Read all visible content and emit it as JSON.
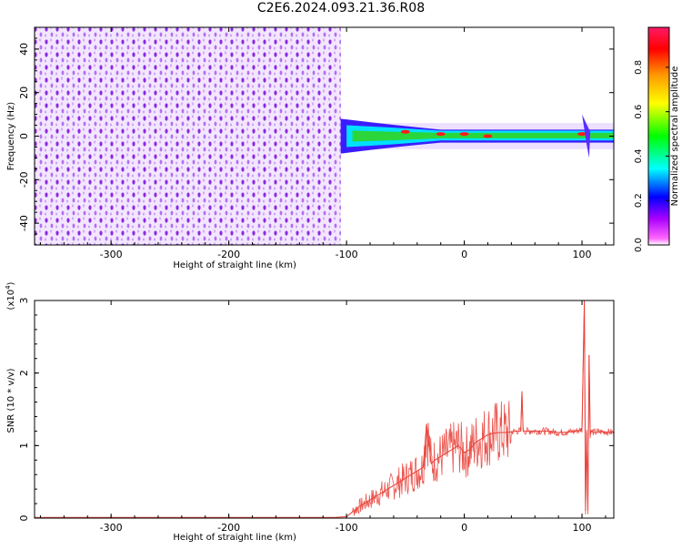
{
  "title": "C2E6.2024.093.21.36.R08",
  "colors": {
    "snr_line": "#e8413a",
    "scatter": "#8a2be2",
    "axis": "#000000"
  },
  "chart_data": [
    {
      "type": "heatmap",
      "xlabel": "Height of straight line (km)",
      "ylabel": "Frequency (Hz)",
      "xlim": [
        -365,
        127
      ],
      "ylim": [
        -50,
        50
      ],
      "xticks": [
        -300,
        -200,
        -100,
        0,
        100
      ],
      "xtick_labels": [
        "-300",
        "-200",
        "-100",
        "0",
        "100"
      ],
      "yticks": [
        -40,
        -20,
        0,
        20,
        40
      ],
      "ytick_labels": [
        "-40",
        "-20",
        "0",
        "20",
        "40"
      ],
      "noise_region_x": [
        -365,
        -105
      ],
      "signal_band_x": [
        -105,
        127
      ],
      "colorbar": {
        "label": "Normalized spectral amplitude",
        "range": [
          0,
          1
        ],
        "ticks": [
          "0.0",
          "0.2",
          "0.4",
          "0.6",
          "0.8"
        ],
        "tick_values": [
          0,
          0.2,
          0.4,
          0.6,
          0.8
        ],
        "colormap": [
          "#ff0000",
          "#ff9900",
          "#ffff00",
          "#00ff00",
          "#00ffff",
          "#0000ff",
          "#ff00ff",
          "#ff3366"
        ]
      },
      "grid": false
    },
    {
      "type": "line",
      "xlabel": "Height of straight line (km)",
      "ylabel": "SNR (10 * v/v)",
      "y_multiplier": "(x10",
      "y_multiplier_exp": "4",
      "xlim": [
        -365,
        127
      ],
      "ylim": [
        0,
        3
      ],
      "xticks": [
        -300,
        -200,
        -100,
        0,
        100
      ],
      "xtick_labels": [
        "-300",
        "-200",
        "-100",
        "0",
        "100"
      ],
      "yticks": [
        0,
        1,
        2,
        3
      ],
      "ytick_labels": [
        "0",
        "1",
        "2",
        "3"
      ],
      "grid": false,
      "series": [
        {
          "x": [
            -365,
            -300,
            -200,
            -110,
            -100,
            -90,
            -85,
            -80,
            -75,
            -70,
            -65,
            -60,
            -55,
            -50,
            -45,
            -40,
            -35,
            -32,
            -28,
            -25,
            -20,
            -15,
            -10,
            -5,
            0,
            5,
            10,
            15,
            20,
            25,
            30,
            35,
            40,
            45,
            48,
            49,
            50,
            55,
            60,
            70,
            80,
            90,
            95,
            100,
            102,
            103,
            104,
            105,
            106,
            107,
            108,
            110,
            115,
            120,
            127
          ],
          "y": [
            0.01,
            0.01,
            0.01,
            0.01,
            0.02,
            0.15,
            0.2,
            0.25,
            0.3,
            0.35,
            0.4,
            0.45,
            0.5,
            0.55,
            0.6,
            0.65,
            0.7,
            1.3,
            0.75,
            0.8,
            0.85,
            0.9,
            0.95,
            1.0,
            0.9,
            0.95,
            1.05,
            1.1,
            1.15,
            1.17,
            1.18,
            1.18,
            1.19,
            1.2,
            1.2,
            1.75,
            1.2,
            1.2,
            1.2,
            1.2,
            1.18,
            1.19,
            1.2,
            1.22,
            3.0,
            0.1,
            1.2,
            0.1,
            2.25,
            1.15,
            1.2,
            1.18,
            1.19,
            1.19,
            1.18
          ]
        }
      ]
    }
  ]
}
